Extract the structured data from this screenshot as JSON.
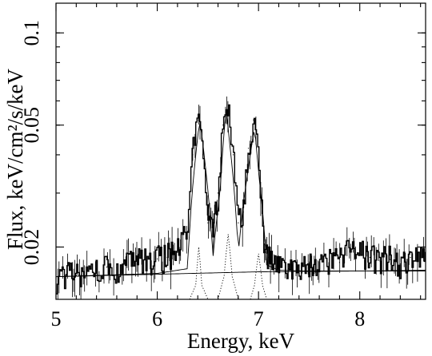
{
  "chart_data": {
    "type": "line",
    "xlabel": "Energy, keV",
    "ylabel": "Flux, keV/cm²/s/keV",
    "xlim": [
      5.0,
      8.65
    ],
    "ylim": [
      0.0135,
      0.125
    ],
    "yscale": "log",
    "xticks": [
      {
        "value": 5,
        "label": "5"
      },
      {
        "value": 6,
        "label": "6"
      },
      {
        "value": 7,
        "label": "7"
      },
      {
        "value": 8,
        "label": "8"
      }
    ],
    "yticks": [
      {
        "value": 0.02,
        "label": "0.02"
      },
      {
        "value": 0.05,
        "label": "0.05"
      },
      {
        "value": 0.1,
        "label": "0.1"
      }
    ],
    "series": [
      {
        "style": "data-histogram-with-error-bars",
        "x": [
          5.0,
          5.1,
          5.2,
          5.3,
          5.4,
          5.5,
          5.6,
          5.7,
          5.8,
          5.9,
          6.0,
          6.1,
          6.2,
          6.3,
          6.35,
          6.4,
          6.45,
          6.5,
          6.55,
          6.6,
          6.65,
          6.7,
          6.75,
          6.8,
          6.85,
          6.9,
          6.95,
          7.0,
          7.05,
          7.1,
          7.2,
          7.3,
          7.4,
          7.5,
          7.6,
          7.7,
          7.8,
          7.9,
          8.0,
          8.1,
          8.2,
          8.3,
          8.4,
          8.5,
          8.6
        ],
        "values": [
          0.0158,
          0.0163,
          0.0162,
          0.0168,
          0.017,
          0.0172,
          0.0171,
          0.0175,
          0.0178,
          0.018,
          0.0183,
          0.0185,
          0.0192,
          0.0225,
          0.04,
          0.052,
          0.04,
          0.024,
          0.022,
          0.03,
          0.05,
          0.058,
          0.04,
          0.024,
          0.026,
          0.042,
          0.052,
          0.036,
          0.021,
          0.0185,
          0.0172,
          0.017,
          0.0165,
          0.0175,
          0.0178,
          0.0182,
          0.0178,
          0.0195,
          0.019,
          0.0185,
          0.018,
          0.0182,
          0.0176,
          0.0185,
          0.0182
        ]
      },
      {
        "style": "total-model",
        "x": [
          5.0,
          5.5,
          6.0,
          6.3,
          6.38,
          6.42,
          6.47,
          6.55,
          6.62,
          6.68,
          6.72,
          6.8,
          6.9,
          6.96,
          7.0,
          7.08,
          7.2,
          7.5,
          8.0,
          8.65
        ],
        "values": [
          0.016,
          0.0162,
          0.0164,
          0.017,
          0.04,
          0.052,
          0.038,
          0.0185,
          0.03,
          0.056,
          0.042,
          0.019,
          0.036,
          0.049,
          0.035,
          0.0175,
          0.0168,
          0.0167,
          0.0167,
          0.0167
        ]
      },
      {
        "style": "continuum-component",
        "x": [
          5.0,
          6.0,
          7.0,
          8.0,
          8.65
        ],
        "values": [
          0.016,
          0.0163,
          0.0166,
          0.0167,
          0.0168
        ]
      },
      {
        "style": "line-component",
        "x": [
          6.32,
          6.38,
          6.41,
          6.44,
          6.5
        ],
        "values": [
          0.0135,
          0.015,
          0.02,
          0.015,
          0.0135
        ]
      },
      {
        "style": "line-component",
        "x": [
          6.6,
          6.66,
          6.7,
          6.74,
          6.8
        ],
        "values": [
          0.0135,
          0.016,
          0.022,
          0.016,
          0.0135
        ]
      },
      {
        "style": "line-component",
        "x": [
          6.92,
          6.96,
          7.0,
          7.04,
          7.08
        ],
        "values": [
          0.0135,
          0.015,
          0.019,
          0.015,
          0.0135
        ]
      }
    ]
  }
}
